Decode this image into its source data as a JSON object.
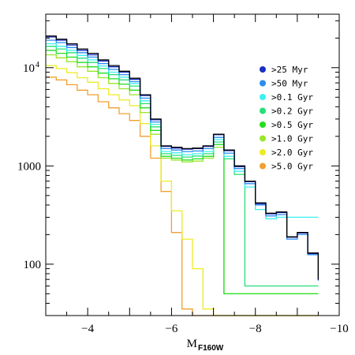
{
  "chart_data": {
    "type": "line",
    "style": "step-histogram",
    "title": "",
    "xlabel": "M",
    "xlabel_subscript": "F160W",
    "ylabel": "",
    "xlim": [
      -3,
      -10
    ],
    "ylim": [
      30,
      35000
    ],
    "y_scale": "log",
    "x_ticks": [
      {
        "value": -4,
        "label": "−4"
      },
      {
        "value": -6,
        "label": "−6"
      },
      {
        "value": -8,
        "label": "−8"
      },
      {
        "value": -10,
        "label": "−10"
      }
    ],
    "y_ticks": [
      {
        "value": 100,
        "label": "100",
        "sup": ""
      },
      {
        "value": 1000,
        "label": "1000",
        "sup": ""
      },
      {
        "value": 10000,
        "label": "10",
        "sup": "4"
      }
    ],
    "grid": false,
    "legend_position": "right",
    "bin_edges": [
      -3.0,
      -3.25,
      -3.5,
      -3.75,
      -4.0,
      -4.25,
      -4.5,
      -4.75,
      -5.0,
      -5.25,
      -5.5,
      -5.75,
      -6.0,
      -6.25,
      -6.5,
      -6.75,
      -7.0,
      -7.25,
      -7.5,
      -7.75,
      -8.0,
      -8.25,
      -8.5,
      -8.75,
      -9.0,
      -9.25,
      -9.5
    ],
    "series": [
      {
        "name": "",
        "color": "#000000",
        "values": [
          21000,
          19500,
          17500,
          15500,
          14000,
          12000,
          10500,
          9200,
          7800,
          5300,
          3000,
          1600,
          1550,
          1500,
          1520,
          1600,
          2100,
          1450,
          1000,
          700,
          420,
          330,
          340,
          190,
          210,
          130,
          70
        ]
      },
      {
        "name": ">25 Myr",
        "color": "#1a2fc4",
        "values": [
          20500,
          19000,
          17000,
          15000,
          13500,
          11700,
          10200,
          9000,
          7600,
          5200,
          2950,
          1580,
          1520,
          1480,
          1500,
          1580,
          2080,
          1430,
          980,
          690,
          410,
          325,
          335,
          188,
          208,
          128,
          69
        ]
      },
      {
        "name": ">50 Myr",
        "color": "#2a8cf0",
        "values": [
          19000,
          18000,
          16000,
          14200,
          12800,
          11000,
          9600,
          8500,
          7200,
          4900,
          2800,
          1500,
          1450,
          1400,
          1420,
          1500,
          1950,
          1350,
          940,
          660,
          400,
          310,
          320,
          180,
          200,
          125,
          68
        ]
      },
      {
        "name": ">0.1 Gyr",
        "color": "#3cf0f0",
        "values": [
          17500,
          16500,
          15000,
          13300,
          12000,
          10400,
          9000,
          8000,
          6900,
          4600,
          2650,
          1400,
          1360,
          1300,
          1330,
          1400,
          1850,
          1250,
          880,
          610,
          360,
          290,
          300,
          300,
          300,
          300,
          300
        ]
      },
      {
        "name": ">0.2 Gyr",
        "color": "#22e07a",
        "values": [
          16500,
          15500,
          14200,
          12500,
          11300,
          9800,
          8500,
          7500,
          6500,
          4300,
          2500,
          1330,
          1280,
          1230,
          1260,
          1330,
          1750,
          1180,
          820,
          60,
          60,
          60,
          60,
          60,
          60,
          60,
          60
        ]
      },
      {
        "name": ">0.5 Gyr",
        "color": "#22dd22",
        "values": [
          15000,
          14000,
          12800,
          11300,
          10200,
          8800,
          7700,
          6800,
          5900,
          3900,
          2300,
          1250,
          1200,
          1150,
          1180,
          1250,
          1650,
          50,
          50,
          50,
          50,
          50,
          50,
          50,
          50,
          50,
          50
        ]
      },
      {
        "name": ">1.0 Gyr",
        "color": "#99e629",
        "values": [
          13500,
          12600,
          11500,
          10200,
          9200,
          7900,
          6900,
          6100,
          5300,
          3500,
          2100,
          1200,
          1150,
          1100,
          1120,
          1200,
          1550,
          50,
          50,
          50,
          50,
          50,
          50,
          50,
          50,
          50,
          50
        ]
      },
      {
        "name": ">2.0 Gyr",
        "color": "#ecec22",
        "values": [
          10500,
          9800,
          8900,
          7900,
          7100,
          6100,
          5300,
          4700,
          4100,
          2700,
          1600,
          700,
          350,
          180,
          90,
          35,
          30,
          30,
          30,
          30,
          30,
          30,
          30,
          30,
          30,
          30,
          30
        ]
      },
      {
        "name": ">5.0 Gyr",
        "color": "#f0a030",
        "values": [
          8000,
          7500,
          6700,
          5900,
          5300,
          4500,
          3900,
          3400,
          2900,
          2000,
          1200,
          550,
          210,
          35,
          30,
          30,
          30,
          30,
          30,
          30,
          30,
          30,
          30,
          30,
          30,
          30,
          30
        ]
      }
    ]
  }
}
